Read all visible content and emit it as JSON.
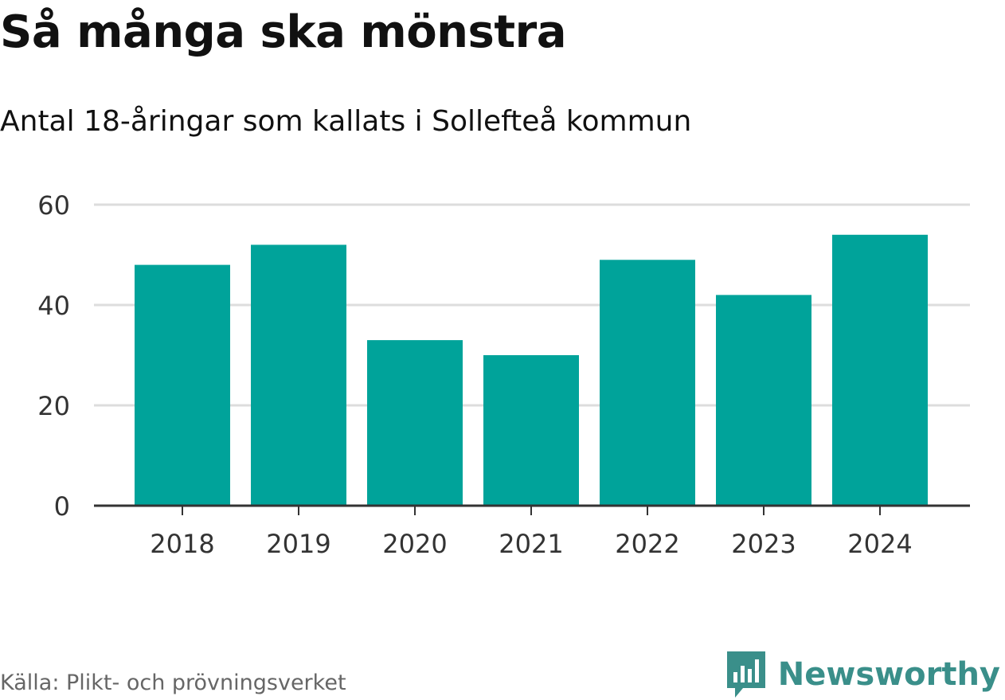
{
  "header": {
    "title": "Så många ska mönstra",
    "subtitle": "Antal 18-åringar som kallats i Sollefteå kommun"
  },
  "footer": {
    "source": "Källa: Plikt- och prövningsverket",
    "brand": "Newsworthy"
  },
  "colors": {
    "bar": "#00a39a",
    "grid": "#dddddd",
    "axis": "#333333",
    "brand": "#3a8f8a"
  },
  "chart_data": {
    "type": "bar",
    "categories": [
      "2018",
      "2019",
      "2020",
      "2021",
      "2022",
      "2023",
      "2024"
    ],
    "values": [
      48,
      52,
      33,
      30,
      49,
      42,
      54
    ],
    "ylim": [
      0,
      60
    ],
    "yticks": [
      0,
      20,
      40,
      60
    ],
    "grid": true
  }
}
